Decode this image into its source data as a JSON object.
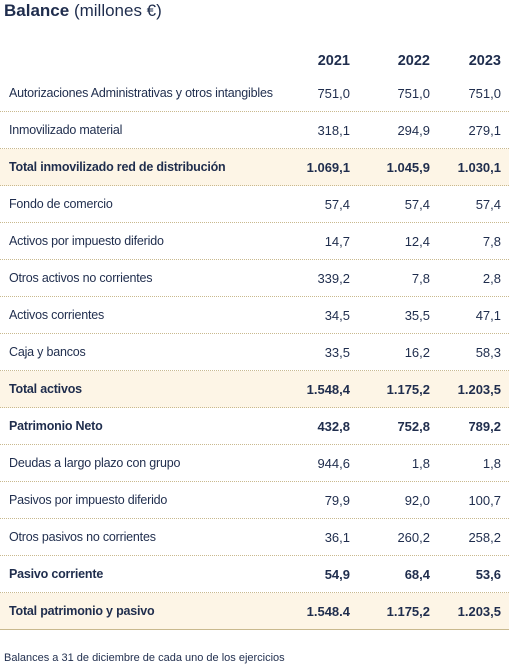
{
  "title": {
    "bold": "Balance",
    "light": "(millones €)"
  },
  "columns": [
    "2021",
    "2022",
    "2023"
  ],
  "rows": [
    {
      "label": "Autorizaciones Administrativas y otros intangibles",
      "values": [
        "751,0",
        "751,0",
        "751,0"
      ],
      "bold": false,
      "shaded": false
    },
    {
      "label": "Inmovilizado material",
      "values": [
        "318,1",
        "294,9",
        "279,1"
      ],
      "bold": false,
      "shaded": false
    },
    {
      "label": "Total inmovilizado red de distribución",
      "values": [
        "1.069,1",
        "1.045,9",
        "1.030,1"
      ],
      "bold": true,
      "shaded": true
    },
    {
      "label": "Fondo de comercio",
      "values": [
        "57,4",
        "57,4",
        "57,4"
      ],
      "bold": false,
      "shaded": false
    },
    {
      "label": "Activos por impuesto diferido",
      "values": [
        "14,7",
        "12,4",
        "7,8"
      ],
      "bold": false,
      "shaded": false
    },
    {
      "label": "Otros activos no corrientes",
      "values": [
        "339,2",
        "7,8",
        "2,8"
      ],
      "bold": false,
      "shaded": false
    },
    {
      "label": "Activos corrientes",
      "values": [
        "34,5",
        "35,5",
        "47,1"
      ],
      "bold": false,
      "shaded": false
    },
    {
      "label": "Caja y bancos",
      "values": [
        "33,5",
        "16,2",
        "58,3"
      ],
      "bold": false,
      "shaded": false
    },
    {
      "label": "Total activos",
      "values": [
        "1.548,4",
        "1.175,2",
        "1.203,5"
      ],
      "bold": true,
      "shaded": true
    },
    {
      "label": "Patrimonio Neto",
      "values": [
        "432,8",
        "752,8",
        "789,2"
      ],
      "bold": true,
      "shaded": false
    },
    {
      "label": "Deudas a largo plazo con grupo",
      "values": [
        "944,6",
        "1,8",
        "1,8"
      ],
      "bold": false,
      "shaded": false
    },
    {
      "label": "Pasivos por impuesto diferido",
      "values": [
        "79,9",
        "92,0",
        "100,7"
      ],
      "bold": false,
      "shaded": false
    },
    {
      "label": "Otros pasivos no corrientes",
      "values": [
        "36,1",
        "260,2",
        "258,2"
      ],
      "bold": false,
      "shaded": false
    },
    {
      "label": "Pasivo corriente",
      "values": [
        "54,9",
        "68,4",
        "53,6"
      ],
      "bold": true,
      "shaded": false
    },
    {
      "label": "Total patrimonio y pasivo",
      "values": [
        "1.548.4",
        "1.175,2",
        "1.203,5"
      ],
      "bold": true,
      "shaded": true
    }
  ],
  "footnote": "Balances a 31 de diciembre de cada uno de los ejercicios"
}
